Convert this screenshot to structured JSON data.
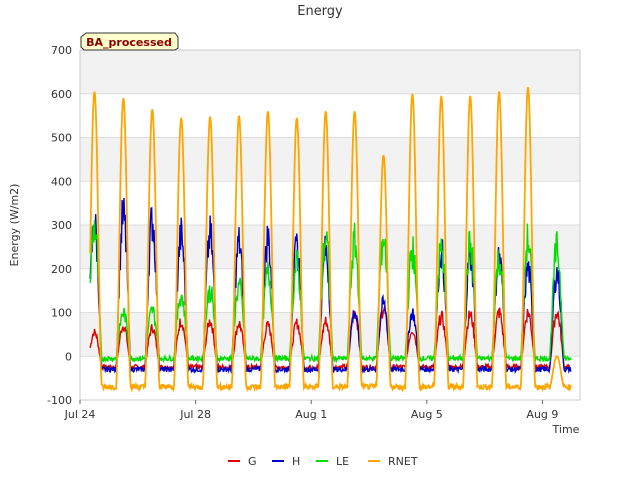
{
  "chart_data": {
    "type": "line",
    "title": "Energy",
    "xlabel": "Time",
    "ylabel": "Energy (W/m2)",
    "badge": "BA_processed",
    "xlim": [
      0,
      17.3
    ],
    "ylim": [
      -100,
      700
    ],
    "yticks": [
      -100,
      0,
      100,
      200,
      300,
      400,
      500,
      600,
      700
    ],
    "xticks": [
      {
        "day": 0,
        "label": "Jul 24"
      },
      {
        "day": 4,
        "label": "Jul 28"
      },
      {
        "day": 8,
        "label": "Aug 1"
      },
      {
        "day": 12,
        "label": "Aug 5"
      },
      {
        "day": 16,
        "label": "Aug 9"
      }
    ],
    "grid": true,
    "legend_position": "bottom",
    "series": [
      {
        "name": "G",
        "color": "#dd0000",
        "night": -25,
        "daily_peaks": [
          55,
          70,
          65,
          80,
          80,
          75,
          70,
          75,
          80,
          105,
          110,
          60,
          90,
          95,
          100,
          100,
          100
        ]
      },
      {
        "name": "H",
        "color": "#0000cc",
        "night": -30,
        "daily_peaks": [
          300,
          320,
          310,
          275,
          275,
          260,
          270,
          245,
          240,
          100,
          120,
          100,
          240,
          230,
          230,
          200,
          190
        ]
      },
      {
        "name": "LE",
        "color": "#00dd00",
        "night": -5,
        "daily_peaks": [
          295,
          100,
          105,
          140,
          150,
          160,
          190,
          210,
          270,
          260,
          270,
          240,
          245,
          255,
          225,
          265,
          245
        ]
      },
      {
        "name": "RNET",
        "color": "#ffa500",
        "night": -70,
        "daily_peaks": [
          605,
          590,
          565,
          545,
          548,
          550,
          560,
          545,
          560,
          560,
          460,
          600,
          595,
          595,
          605,
          615,
          0
        ]
      }
    ]
  }
}
